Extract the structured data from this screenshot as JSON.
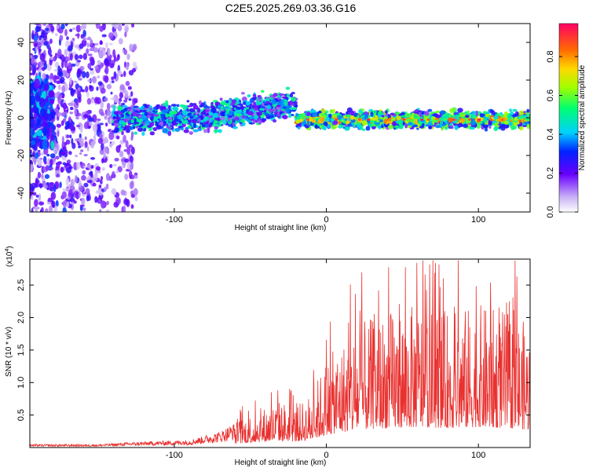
{
  "title": "C2E5.2025.269.03.36.G16",
  "chart_data": [
    {
      "type": "heatmap",
      "name": "spectrogram",
      "xlabel": "Height of straight line (km)",
      "ylabel": "Frequency (Hz)",
      "xlim": [
        -195,
        134
      ],
      "ylim": [
        -50,
        50
      ],
      "x_ticks": [
        -100,
        0,
        100
      ],
      "y_ticks": [
        -40,
        -20,
        0,
        20,
        40
      ],
      "colorbar": {
        "label": "Normalized spectral amplitude",
        "range": [
          0.0,
          0.97
        ],
        "ticks": [
          "0.0",
          "0.2",
          "0.4",
          "0.6",
          "0.8"
        ],
        "tick_values": [
          0.0,
          0.2,
          0.4,
          0.6,
          0.8
        ]
      },
      "description_points": [
        {
          "x": -190,
          "y": 10,
          "amp": 0.25
        },
        {
          "x": -160,
          "y": 0,
          "amp": 0.2
        },
        {
          "x": -110,
          "y": 0,
          "amp": 0.35
        },
        {
          "x": -70,
          "y": 2,
          "amp": 0.45
        },
        {
          "x": -30,
          "y": 8,
          "amp": 0.4
        },
        {
          "x": 0,
          "y": -1,
          "amp": 0.7
        },
        {
          "x": 50,
          "y": -1,
          "amp": 0.75
        },
        {
          "x": 100,
          "y": -1,
          "amp": 0.7
        },
        {
          "x": 130,
          "y": -1,
          "amp": 0.5
        }
      ]
    },
    {
      "type": "line",
      "name": "snr",
      "xlabel": "Height of straight line (km)",
      "ylabel": "SNR (10 * v/v)",
      "scale_label": "(x10",
      "scale_exp": "4",
      "scale_close": ")",
      "xlim": [
        -195,
        134
      ],
      "ylim": [
        0,
        2.9
      ],
      "x_ticks": [
        -100,
        0,
        100
      ],
      "y_ticks": [
        0.5,
        1.0,
        1.5,
        2.0,
        2.5
      ],
      "y_tick_labels": [
        "0.5",
        "1.0",
        "1.5",
        "2.0",
        "2.5"
      ],
      "color": "#e8312f",
      "envelope": [
        {
          "x": -195,
          "y": 0.05
        },
        {
          "x": -150,
          "y": 0.05
        },
        {
          "x": -130,
          "y": 0.08
        },
        {
          "x": -110,
          "y": 0.1
        },
        {
          "x": -90,
          "y": 0.12
        },
        {
          "x": -70,
          "y": 0.25
        },
        {
          "x": -55,
          "y": 0.45
        },
        {
          "x": -40,
          "y": 0.6
        },
        {
          "x": -30,
          "y": 0.7
        },
        {
          "x": -20,
          "y": 0.6
        },
        {
          "x": -10,
          "y": 0.8
        },
        {
          "x": 0,
          "y": 1.3
        },
        {
          "x": 20,
          "y": 1.8
        },
        {
          "x": 40,
          "y": 2.0
        },
        {
          "x": 60,
          "y": 2.1
        },
        {
          "x": 80,
          "y": 2.0
        },
        {
          "x": 100,
          "y": 2.1
        },
        {
          "x": 120,
          "y": 2.0
        },
        {
          "x": 134,
          "y": 1.8
        }
      ]
    }
  ]
}
